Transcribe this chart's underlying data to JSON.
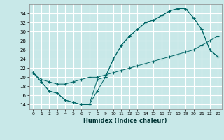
{
  "title": "",
  "xlabel": "Humidex (Indice chaleur)",
  "ylabel": "",
  "bg_color": "#c8e8e8",
  "grid_color": "#ffffff",
  "line_color": "#006666",
  "xlim": [
    -0.5,
    23.5
  ],
  "ylim": [
    13,
    36
  ],
  "yticks": [
    14,
    16,
    18,
    20,
    22,
    24,
    26,
    28,
    30,
    32,
    34
  ],
  "xticks": [
    0,
    1,
    2,
    3,
    4,
    5,
    6,
    7,
    8,
    9,
    10,
    11,
    12,
    13,
    14,
    15,
    16,
    17,
    18,
    19,
    20,
    21,
    22,
    23
  ],
  "line1_x": [
    0,
    1,
    2,
    3,
    4,
    5,
    6,
    7,
    8,
    9,
    10,
    11,
    12,
    13,
    14,
    15,
    16,
    17,
    18,
    19,
    20,
    21,
    22,
    23
  ],
  "line1_y": [
    21,
    19,
    17,
    16.5,
    15,
    14.5,
    14,
    14,
    17,
    20,
    24,
    27,
    29,
    30.5,
    32,
    32.5,
    33.5,
    34.5,
    35,
    35,
    33,
    30.5,
    26,
    24.5
  ],
  "line2_x": [
    0,
    1,
    2,
    3,
    4,
    5,
    6,
    7,
    8,
    9,
    10,
    11,
    12,
    13,
    14,
    15,
    16,
    17,
    18,
    19,
    20,
    21,
    22,
    23
  ],
  "line2_y": [
    21,
    19.5,
    19,
    18.5,
    18.5,
    19,
    19.5,
    20,
    20,
    20.5,
    21,
    21.5,
    22,
    22.5,
    23,
    23.5,
    24,
    24.5,
    25,
    25.5,
    26,
    27,
    28,
    29
  ],
  "line3_x": [
    0,
    1,
    2,
    3,
    4,
    5,
    6,
    7,
    8,
    9,
    10,
    11,
    12,
    13,
    14,
    15,
    16,
    17,
    18,
    19,
    20,
    21,
    22,
    23
  ],
  "line3_y": [
    21,
    19,
    17,
    16.5,
    15,
    14.5,
    14,
    14,
    19.5,
    20,
    24,
    27,
    29,
    30.5,
    32,
    32.5,
    33.5,
    34.5,
    35,
    35,
    33,
    30.5,
    26,
    24.5
  ]
}
